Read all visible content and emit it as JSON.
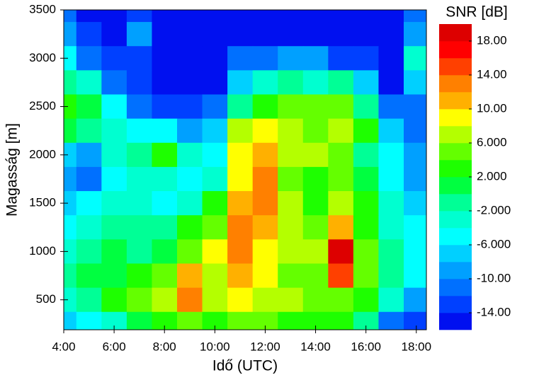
{
  "chart_data": {
    "type": "contour",
    "colorbar_title": "SNR [dB]",
    "x_label": "Idő (UTC)",
    "y_label": "Magasság [m]",
    "x": [
      4,
      5,
      6,
      7,
      8,
      9,
      10,
      11,
      12,
      13,
      14,
      15,
      16,
      17,
      18
    ],
    "y": [
      3500,
      3250,
      3000,
      2750,
      2500,
      2250,
      2000,
      1750,
      1500,
      1250,
      1000,
      750,
      500,
      250
    ],
    "z": [
      [
        -12,
        -15,
        -15,
        -14,
        -15,
        -15,
        -15,
        -15,
        -15,
        -15,
        -15,
        -15,
        -15,
        -15,
        -12
      ],
      [
        -10,
        -14,
        -15,
        -10,
        -15,
        -15,
        -15,
        -15,
        -15,
        -15,
        -15,
        -15,
        -15,
        -15,
        -10
      ],
      [
        -6,
        -12,
        -14,
        -14,
        -15,
        -15,
        -15,
        -12,
        -12,
        -10,
        -10,
        -14,
        -14,
        -15,
        -4
      ],
      [
        -2,
        -4,
        -12,
        -14,
        -15,
        -15,
        -15,
        -8,
        -4,
        -2,
        -4,
        -2,
        -8,
        -15,
        -8
      ],
      [
        2,
        0,
        -6,
        -12,
        -14,
        -14,
        -12,
        -2,
        2,
        4,
        4,
        4,
        -2,
        -12,
        -12
      ],
      [
        0,
        -2,
        -4,
        -6,
        -6,
        -10,
        -8,
        6,
        8,
        6,
        4,
        6,
        2,
        -8,
        -12
      ],
      [
        -8,
        -10,
        -4,
        -2,
        2,
        -4,
        -6,
        8,
        10,
        6,
        6,
        4,
        -2,
        -6,
        -10
      ],
      [
        -10,
        -12,
        -6,
        -4,
        -4,
        -6,
        -4,
        8,
        12,
        4,
        2,
        4,
        0,
        -6,
        -10
      ],
      [
        -8,
        -6,
        -4,
        -4,
        -6,
        -4,
        2,
        10,
        12,
        6,
        2,
        6,
        2,
        -4,
        -8
      ],
      [
        -6,
        -4,
        -2,
        -2,
        -2,
        2,
        4,
        12,
        10,
        6,
        4,
        10,
        2,
        -4,
        -6
      ],
      [
        -4,
        -2,
        0,
        -2,
        0,
        4,
        8,
        12,
        8,
        6,
        6,
        18,
        4,
        -2,
        -6
      ],
      [
        -2,
        0,
        0,
        2,
        4,
        10,
        6,
        10,
        8,
        4,
        4,
        14,
        4,
        -2,
        -6
      ],
      [
        -4,
        -2,
        2,
        4,
        6,
        12,
        6,
        8,
        6,
        6,
        4,
        4,
        2,
        -4,
        -10
      ],
      [
        -8,
        -6,
        -4,
        0,
        2,
        4,
        2,
        4,
        4,
        2,
        2,
        2,
        -2,
        -12,
        -14
      ]
    ],
    "levels": [
      -16,
      -14,
      -12,
      -10,
      -8,
      -6,
      -4,
      -2,
      0,
      2,
      4,
      6,
      8,
      10,
      12,
      14,
      16,
      18,
      20
    ],
    "colors": [
      "#0010f0",
      "#0040ff",
      "#0070ff",
      "#00a0ff",
      "#00d0ff",
      "#00ffff",
      "#00ffd0",
      "#00ff96",
      "#00ff40",
      "#1eff00",
      "#64ff00",
      "#b4ff00",
      "#ffff00",
      "#ffb000",
      "#ff8000",
      "#ff4000",
      "#ff0000",
      "#dd0000"
    ],
    "xlim": [
      4,
      18.4
    ],
    "ylim": [
      190,
      3500
    ],
    "xticks": [
      {
        "value": 4,
        "label": "4:00"
      },
      {
        "value": 6,
        "label": "6:00"
      },
      {
        "value": 8,
        "label": "8:00"
      },
      {
        "value": 10,
        "label": "10:00"
      },
      {
        "value": 12,
        "label": "12:00"
      },
      {
        "value": 14,
        "label": "14:00"
      },
      {
        "value": 16,
        "label": "16:00"
      },
      {
        "value": 18,
        "label": "18:00"
      }
    ],
    "yticks": [
      500,
      1000,
      1500,
      2000,
      2500,
      3000,
      3500
    ],
    "colorbar_ticks": [
      {
        "value": -14,
        "label": "-14.00"
      },
      {
        "value": -10,
        "label": "-10.00"
      },
      {
        "value": -6,
        "label": "-6.000"
      },
      {
        "value": -2,
        "label": "-2.000"
      },
      {
        "value": 2,
        "label": "2.000"
      },
      {
        "value": 6,
        "label": "6.000"
      },
      {
        "value": 10,
        "label": "10.00"
      },
      {
        "value": 14,
        "label": "14.00"
      },
      {
        "value": 18,
        "label": "18.00"
      }
    ]
  }
}
